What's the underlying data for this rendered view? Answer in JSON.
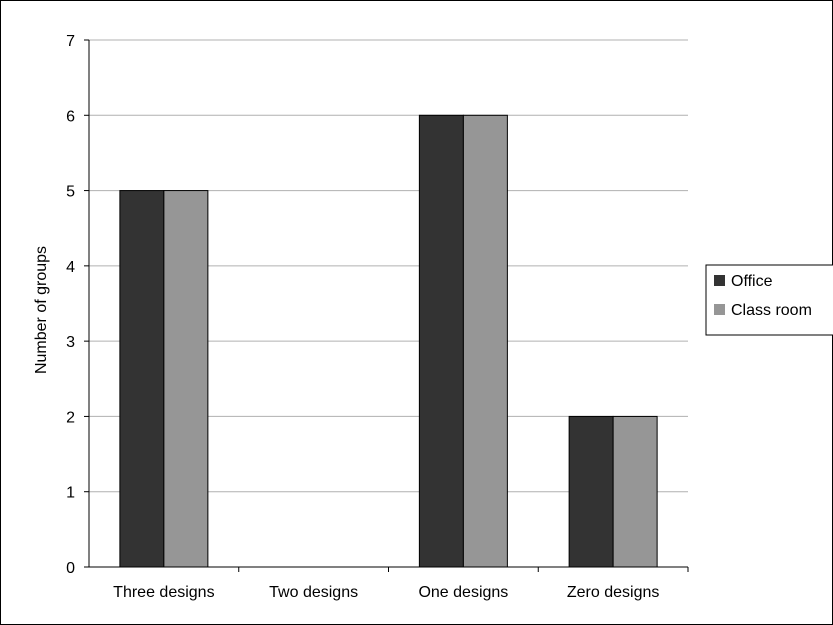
{
  "chart_data": {
    "type": "bar",
    "categories": [
      "Three designs",
      "Two designs",
      "One designs",
      "Zero designs"
    ],
    "series": [
      {
        "name": "Office",
        "values": [
          5,
          0,
          6,
          2
        ],
        "color": "#333333"
      },
      {
        "name": "Class room",
        "values": [
          5,
          0,
          6,
          2
        ],
        "color": "#969696"
      }
    ],
    "ylabel": "Number of groups",
    "xlabel": "",
    "ylim": [
      0,
      7
    ],
    "yticks": [
      0,
      1,
      2,
      3,
      4,
      5,
      6,
      7
    ],
    "grid": true,
    "legend": "right"
  }
}
